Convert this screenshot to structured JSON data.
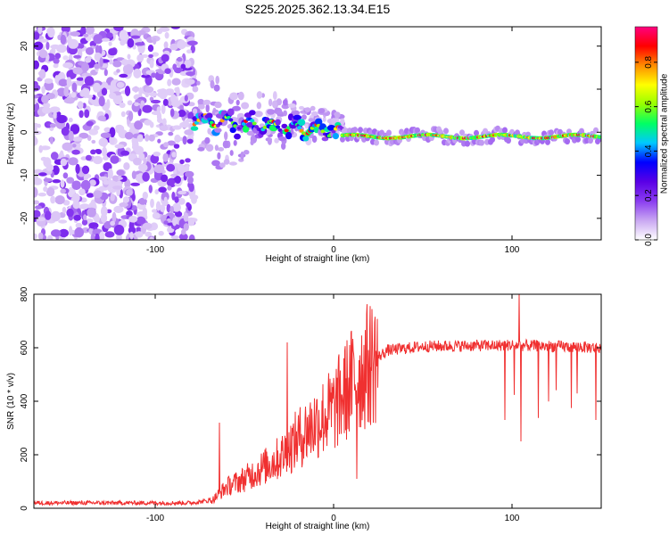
{
  "figure_title": "S225.2025.362.13.34.E15",
  "chart_data": [
    {
      "type": "heatmap",
      "title": "S225.2025.362.13.34.E15",
      "xlabel": "Height of straight line (km)",
      "ylabel": "Frequency (Hz)",
      "xlim": [
        -168,
        150
      ],
      "ylim": [
        -25,
        24.5
      ],
      "x_ticks": [
        -100,
        0,
        100
      ],
      "y_ticks": [
        -20,
        -10,
        0,
        10,
        20
      ],
      "colorbar": {
        "label": "Normalized spectral amplitude",
        "range": [
          0,
          0.96
        ],
        "ticks": [
          0.0,
          0.2,
          0.4,
          0.6,
          0.8
        ],
        "colormap": [
          "#ffffff",
          "#c9a7f2",
          "#8a3cf0",
          "#5a00e6",
          "#0000ff",
          "#00c8ff",
          "#00ff64",
          "#96ff00",
          "#ffff00",
          "#ff8c00",
          "#ff0000",
          "#ff0080"
        ]
      },
      "regions": [
        {
          "x_range": [
            -168,
            -78
          ],
          "description_value": "noise",
          "amplitude_range": [
            0.0,
            0.22
          ]
        },
        {
          "x_range": [
            -78,
            5
          ],
          "freq_center_start": 3,
          "freq_center_end": 0,
          "amplitude_range": [
            0.2,
            0.9
          ]
        },
        {
          "x_range": [
            5,
            150
          ],
          "freq_center": -1,
          "amplitude_range": [
            0.5,
            0.95
          ]
        }
      ]
    },
    {
      "type": "line",
      "xlabel": "Height of straight line (km)",
      "ylabel": "SNR (10 * v/v)",
      "xlim": [
        -168,
        150
      ],
      "ylim": [
        0,
        800
      ],
      "x_ticks": [
        -100,
        0,
        100
      ],
      "y_ticks": [
        0,
        200,
        400,
        600,
        800
      ],
      "series": [
        {
          "name": "SNR",
          "color": "#f03030",
          "keypoints": {
            "x": [
              -168,
              -80,
              -68,
              -60,
              -50,
              -40,
              -30,
              -20,
              -10,
              0,
              10,
              20,
              30,
              50,
              100,
              150
            ],
            "y": [
              20,
              20,
              30,
              80,
              110,
              150,
              190,
              260,
              320,
              370,
              470,
              540,
              590,
              605,
              610,
              600
            ]
          },
          "spikes": [
            {
              "x": 104,
              "y": 800
            },
            {
              "x": 13,
              "y": 705
            },
            {
              "x": -26,
              "y": 620
            },
            {
              "x": -64,
              "y": 320
            },
            {
              "x": 105,
              "y": 250
            },
            {
              "x": 147,
              "y": 330
            },
            {
              "x": 96,
              "y": 330
            },
            {
              "x": 13,
              "y": 110
            }
          ]
        }
      ]
    }
  ]
}
